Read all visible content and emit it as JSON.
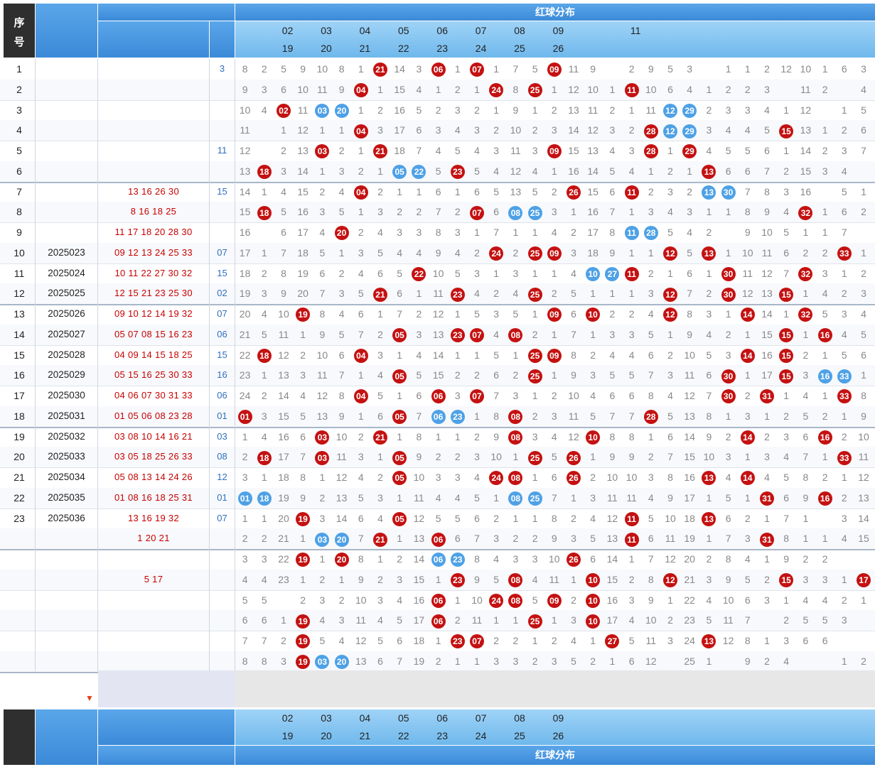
{
  "header": {
    "seq_label_1": "序",
    "seq_label_2": "号",
    "dist_title": "红球分布",
    "col_top": [
      "02",
      "03",
      "04",
      "05",
      "06",
      "07",
      "08",
      "09",
      "",
      "11"
    ],
    "col_bottom": [
      "19",
      "20",
      "21",
      "22",
      "23",
      "24",
      "25",
      "26"
    ]
  },
  "footer": {
    "dist_title": "红球分布",
    "col_top": [
      "02",
      "03",
      "04",
      "05",
      "06",
      "07",
      "08",
      "09"
    ],
    "col_bottom": [
      "19",
      "20",
      "21",
      "22",
      "23",
      "24",
      "25",
      "26"
    ]
  },
  "rows": [
    {
      "seq": "1",
      "issue": "",
      "nums": "",
      "blue": "3",
      "cells": [
        "8",
        "2",
        "5",
        "9",
        "10",
        "8",
        "1",
        "R21",
        "14",
        "3",
        "R06",
        "1",
        "R07",
        "1",
        "7",
        "5",
        "R09",
        "11",
        "9",
        "",
        "2",
        "9",
        "5",
        "3",
        "",
        "1",
        "1",
        "2",
        "12",
        "10",
        "1",
        "6",
        "3"
      ]
    },
    {
      "seq": "2",
      "issue": "",
      "nums": "",
      "blue": "",
      "cells": [
        "9",
        "3",
        "6",
        "10",
        "11",
        "9",
        "R04",
        "1",
        "15",
        "4",
        "1",
        "2",
        "1",
        "R24",
        "8",
        "R25",
        "1",
        "12",
        "10",
        "1",
        "R11",
        "10",
        "6",
        "4",
        "1",
        "2",
        "2",
        "3",
        "",
        "11",
        "2",
        "",
        "4"
      ]
    },
    {
      "seq": "3",
      "issue": "",
      "nums": "",
      "blue": "",
      "cells": [
        "10",
        "4",
        "R02",
        "11",
        "B03",
        "B20",
        "1",
        "2",
        "16",
        "5",
        "2",
        "3",
        "2",
        "1",
        "9",
        "1",
        "2",
        "13",
        "11",
        "2",
        "1",
        "11",
        "B12",
        "B29",
        "2",
        "3",
        "3",
        "4",
        "1",
        "12",
        "",
        "1",
        "5"
      ]
    },
    {
      "seq": "4",
      "issue": "",
      "nums": "",
      "blue": "",
      "cells": [
        "11",
        "",
        "1",
        "12",
        "1",
        "1",
        "R04",
        "3",
        "17",
        "6",
        "3",
        "4",
        "3",
        "2",
        "10",
        "2",
        "3",
        "14",
        "12",
        "3",
        "2",
        "R28",
        "B12",
        "B29",
        "3",
        "4",
        "4",
        "5",
        "R15",
        "13",
        "1",
        "2",
        "6"
      ]
    },
    {
      "seq": "5",
      "issue": "",
      "nums": "",
      "blue": "11",
      "cells": [
        "12",
        "",
        "2",
        "13",
        "R03",
        "2",
        "1",
        "R21",
        "18",
        "7",
        "4",
        "5",
        "4",
        "3",
        "11",
        "3",
        "R09",
        "15",
        "13",
        "4",
        "3",
        "R28",
        "1",
        "R29",
        "4",
        "5",
        "5",
        "6",
        "1",
        "14",
        "2",
        "3",
        "7"
      ]
    },
    {
      "seq": "6",
      "issue": "",
      "nums": "",
      "blue": "",
      "cells": [
        "13",
        "R18",
        "3",
        "14",
        "1",
        "3",
        "2",
        "1",
        "B05",
        "B22",
        "5",
        "R23",
        "5",
        "4",
        "12",
        "4",
        "1",
        "16",
        "14",
        "5",
        "4",
        "1",
        "2",
        "1",
        "R13",
        "6",
        "6",
        "7",
        "2",
        "15",
        "3",
        "4",
        ""
      ]
    },
    {
      "seq": "7",
      "issue": "",
      "nums": "13  16  26  30",
      "blue": "15",
      "cells": [
        "14",
        "1",
        "4",
        "15",
        "2",
        "4",
        "R04",
        "2",
        "1",
        "1",
        "6",
        "1",
        "6",
        "5",
        "13",
        "5",
        "2",
        "R26",
        "15",
        "6",
        "R11",
        "2",
        "3",
        "2",
        "B13",
        "B30",
        "7",
        "8",
        "3",
        "16",
        "",
        "5",
        "1"
      ]
    },
    {
      "seq": "8",
      "issue": "",
      "nums": "8  16  18  25",
      "blue": "",
      "cells": [
        "15",
        "R18",
        "5",
        "16",
        "3",
        "5",
        "1",
        "3",
        "2",
        "2",
        "7",
        "2",
        "R07",
        "6",
        "B08",
        "B25",
        "3",
        "1",
        "16",
        "7",
        "1",
        "3",
        "4",
        "3",
        "1",
        "1",
        "8",
        "9",
        "4",
        "R32",
        "1",
        "6",
        "2"
      ]
    },
    {
      "seq": "9",
      "issue": "",
      "nums": "11  17  18  20  28  30",
      "blue": "",
      "cells": [
        "16",
        "",
        "6",
        "17",
        "4",
        "R20",
        "2",
        "4",
        "3",
        "3",
        "8",
        "3",
        "1",
        "7",
        "1",
        "1",
        "4",
        "2",
        "17",
        "8",
        "B11",
        "B28",
        "5",
        "4",
        "2",
        "",
        "9",
        "10",
        "5",
        "1",
        "1",
        "7",
        ""
      ]
    },
    {
      "seq": "10",
      "issue": "2025023",
      "nums": "09  12  13  24  25  33",
      "blue": "07",
      "cells": [
        "17",
        "1",
        "7",
        "18",
        "5",
        "1",
        "3",
        "5",
        "4",
        "4",
        "9",
        "4",
        "2",
        "R24",
        "2",
        "R25",
        "R09",
        "3",
        "18",
        "9",
        "1",
        "1",
        "R12",
        "5",
        "R13",
        "1",
        "10",
        "11",
        "6",
        "2",
        "2",
        "R33",
        "1"
      ]
    },
    {
      "seq": "11",
      "issue": "2025024",
      "nums": "10  11  22  27  30  32",
      "blue": "15",
      "cells": [
        "18",
        "2",
        "8",
        "19",
        "6",
        "2",
        "4",
        "6",
        "5",
        "R22",
        "10",
        "5",
        "3",
        "1",
        "3",
        "1",
        "1",
        "4",
        "B10",
        "B27",
        "R11",
        "2",
        "1",
        "6",
        "1",
        "R30",
        "11",
        "12",
        "7",
        "R32",
        "3",
        "1",
        "2"
      ]
    },
    {
      "seq": "12",
      "issue": "2025025",
      "nums": "12  15  21  23  25  30",
      "blue": "02",
      "cells": [
        "19",
        "3",
        "9",
        "20",
        "7",
        "3",
        "5",
        "R21",
        "6",
        "1",
        "11",
        "R23",
        "4",
        "2",
        "4",
        "R25",
        "2",
        "5",
        "1",
        "1",
        "1",
        "3",
        "R12",
        "7",
        "2",
        "R30",
        "12",
        "13",
        "R15",
        "1",
        "4",
        "2",
        "3"
      ]
    },
    {
      "seq": "13",
      "issue": "2025026",
      "nums": "09  10  12  14  19  32",
      "blue": "07",
      "cells": [
        "20",
        "4",
        "10",
        "R19",
        "8",
        "4",
        "6",
        "1",
        "7",
        "2",
        "12",
        "1",
        "5",
        "3",
        "5",
        "1",
        "R09",
        "6",
        "R10",
        "2",
        "2",
        "4",
        "R12",
        "8",
        "3",
        "1",
        "R14",
        "14",
        "1",
        "R32",
        "5",
        "3",
        "4"
      ]
    },
    {
      "seq": "14",
      "issue": "2025027",
      "nums": "05  07  08  15  16  23",
      "blue": "06",
      "cells": [
        "21",
        "5",
        "11",
        "1",
        "9",
        "5",
        "7",
        "2",
        "R05",
        "3",
        "13",
        "R23",
        "R07",
        "4",
        "R08",
        "2",
        "1",
        "7",
        "1",
        "3",
        "3",
        "5",
        "1",
        "9",
        "4",
        "2",
        "1",
        "15",
        "R15",
        "1",
        "R16",
        "4",
        "5"
      ]
    },
    {
      "seq": "15",
      "issue": "2025028",
      "nums": "04  09  14  15  18  25",
      "blue": "15",
      "cells": [
        "22",
        "R18",
        "12",
        "2",
        "10",
        "6",
        "R04",
        "3",
        "1",
        "4",
        "14",
        "1",
        "1",
        "5",
        "1",
        "R25",
        "R09",
        "8",
        "2",
        "4",
        "4",
        "6",
        "2",
        "10",
        "5",
        "3",
        "R14",
        "16",
        "R15",
        "2",
        "1",
        "5",
        "6"
      ]
    },
    {
      "seq": "16",
      "issue": "2025029",
      "nums": "05  15  16  25  30  33",
      "blue": "16",
      "cells": [
        "23",
        "1",
        "13",
        "3",
        "11",
        "7",
        "1",
        "4",
        "R05",
        "5",
        "15",
        "2",
        "2",
        "6",
        "2",
        "R25",
        "1",
        "9",
        "3",
        "5",
        "5",
        "7",
        "3",
        "11",
        "6",
        "R30",
        "1",
        "17",
        "R15",
        "3",
        "B16",
        "B33",
        "1"
      ]
    },
    {
      "seq": "17",
      "issue": "2025030",
      "nums": "04  06  07  30  31  33",
      "blue": "06",
      "cells": [
        "24",
        "2",
        "14",
        "4",
        "12",
        "8",
        "R04",
        "5",
        "1",
        "6",
        "R06",
        "3",
        "R07",
        "7",
        "3",
        "1",
        "2",
        "10",
        "4",
        "6",
        "6",
        "8",
        "4",
        "12",
        "7",
        "R30",
        "2",
        "R31",
        "1",
        "4",
        "1",
        "R33",
        "8"
      ]
    },
    {
      "seq": "18",
      "issue": "2025031",
      "nums": "01  05  06  08  23  28",
      "blue": "01",
      "cells": [
        "R01",
        "3",
        "15",
        "5",
        "13",
        "9",
        "1",
        "6",
        "R05",
        "7",
        "B06",
        "B23",
        "1",
        "8",
        "R08",
        "2",
        "3",
        "11",
        "5",
        "7",
        "7",
        "R28",
        "5",
        "13",
        "8",
        "1",
        "3",
        "1",
        "2",
        "5",
        "2",
        "1",
        "9"
      ]
    },
    {
      "seq": "19",
      "issue": "2025032",
      "nums": "03  08  10  14  16  21",
      "blue": "03",
      "cells": [
        "1",
        "4",
        "16",
        "6",
        "R03",
        "10",
        "2",
        "R21",
        "1",
        "8",
        "1",
        "1",
        "2",
        "9",
        "R08",
        "3",
        "4",
        "12",
        "R10",
        "8",
        "8",
        "1",
        "6",
        "14",
        "9",
        "2",
        "R14",
        "2",
        "3",
        "6",
        "R16",
        "2",
        "10"
      ]
    },
    {
      "seq": "20",
      "issue": "2025033",
      "nums": "03  05  18  25  26  33",
      "blue": "08",
      "cells": [
        "2",
        "R18",
        "17",
        "7",
        "R03",
        "11",
        "3",
        "1",
        "R05",
        "9",
        "2",
        "2",
        "3",
        "10",
        "1",
        "R25",
        "5",
        "R26",
        "1",
        "9",
        "9",
        "2",
        "7",
        "15",
        "10",
        "3",
        "1",
        "3",
        "4",
        "7",
        "1",
        "R33",
        "11"
      ]
    },
    {
      "seq": "21",
      "issue": "2025034",
      "nums": "05  08  13  14  24  26",
      "blue": "12",
      "cells": [
        "3",
        "1",
        "18",
        "8",
        "1",
        "12",
        "4",
        "2",
        "R05",
        "10",
        "3",
        "3",
        "4",
        "R24",
        "R08",
        "1",
        "6",
        "R26",
        "2",
        "10",
        "10",
        "3",
        "8",
        "16",
        "R13",
        "4",
        "R14",
        "4",
        "5",
        "8",
        "2",
        "1",
        "12"
      ]
    },
    {
      "seq": "22",
      "issue": "2025035",
      "nums": "01  08  16  18  25  31",
      "blue": "01",
      "cells": [
        "B01",
        "B18",
        "19",
        "9",
        "2",
        "13",
        "5",
        "3",
        "1",
        "11",
        "4",
        "4",
        "5",
        "1",
        "B08",
        "B25",
        "7",
        "1",
        "3",
        "11",
        "11",
        "4",
        "9",
        "17",
        "1",
        "5",
        "1",
        "R31",
        "6",
        "9",
        "R16",
        "2",
        "13"
      ]
    },
    {
      "seq": "23",
      "issue": "2025036",
      "nums": "13  16  19  32",
      "blue": "07",
      "cells": [
        "1",
        "1",
        "20",
        "R19",
        "3",
        "14",
        "6",
        "4",
        "R05",
        "12",
        "5",
        "5",
        "6",
        "2",
        "1",
        "1",
        "8",
        "2",
        "4",
        "12",
        "R11",
        "5",
        "10",
        "18",
        "R13",
        "6",
        "2",
        "1",
        "7",
        "1",
        "",
        "3",
        "14"
      ]
    },
    {
      "seq": "",
      "issue": "",
      "nums": "1  20  21",
      "blue": "",
      "cells": [
        "2",
        "2",
        "21",
        "1",
        "B03",
        "B20",
        "7",
        "R21",
        "1",
        "13",
        "R06",
        "6",
        "7",
        "3",
        "2",
        "2",
        "9",
        "3",
        "5",
        "13",
        "R11",
        "6",
        "11",
        "19",
        "1",
        "7",
        "3",
        "R31",
        "8",
        "1",
        "1",
        "4",
        "15"
      ]
    },
    {
      "seq": "",
      "issue": "",
      "nums": "",
      "blue": "",
      "cells": [
        "3",
        "3",
        "22",
        "R19",
        "1",
        "R20",
        "8",
        "1",
        "2",
        "14",
        "B06",
        "B23",
        "8",
        "4",
        "3",
        "3",
        "10",
        "R26",
        "6",
        "14",
        "1",
        "7",
        "12",
        "20",
        "2",
        "8",
        "4",
        "1",
        "9",
        "2",
        "2",
        "",
        ""
      ]
    },
    {
      "seq": "",
      "issue": "",
      "nums": "5  17",
      "blue": "",
      "cells": [
        "4",
        "4",
        "23",
        "1",
        "2",
        "1",
        "9",
        "2",
        "3",
        "15",
        "1",
        "R23",
        "9",
        "5",
        "R08",
        "4",
        "11",
        "1",
        "R10",
        "15",
        "2",
        "8",
        "R12",
        "21",
        "3",
        "9",
        "5",
        "2",
        "R15",
        "3",
        "3",
        "1",
        "R17"
      ]
    },
    {
      "seq": "",
      "issue": "",
      "nums": "",
      "blue": "",
      "cells": [
        "5",
        "5",
        "",
        "2",
        "3",
        "2",
        "10",
        "3",
        "4",
        "16",
        "R06",
        "1",
        "10",
        "R24",
        "R08",
        "5",
        "R09",
        "2",
        "R10",
        "16",
        "3",
        "9",
        "1",
        "22",
        "4",
        "10",
        "6",
        "3",
        "1",
        "4",
        "4",
        "2",
        "1"
      ]
    },
    {
      "seq": "",
      "issue": "",
      "nums": "",
      "blue": "",
      "cells": [
        "6",
        "6",
        "1",
        "R19",
        "4",
        "3",
        "11",
        "4",
        "5",
        "17",
        "R06",
        "2",
        "11",
        "1",
        "1",
        "R25",
        "1",
        "3",
        "R10",
        "17",
        "4",
        "10",
        "2",
        "23",
        "5",
        "11",
        "7",
        "",
        "2",
        "5",
        "5",
        "3",
        ""
      ]
    },
    {
      "seq": "",
      "issue": "",
      "nums": "",
      "blue": "",
      "cells": [
        "7",
        "7",
        "2",
        "R19",
        "5",
        "4",
        "12",
        "5",
        "6",
        "18",
        "1",
        "R23",
        "R07",
        "2",
        "2",
        "1",
        "2",
        "4",
        "1",
        "R27",
        "5",
        "11",
        "3",
        "24",
        "R13",
        "12",
        "8",
        "1",
        "3",
        "6",
        "6",
        "",
        ""
      ]
    },
    {
      "seq": "",
      "issue": "",
      "nums": "",
      "blue": "",
      "cells": [
        "8",
        "8",
        "3",
        "R19",
        "B03",
        "B20",
        "13",
        "6",
        "7",
        "19",
        "2",
        "1",
        "1",
        "3",
        "3",
        "2",
        "3",
        "5",
        "2",
        "1",
        "6",
        "12",
        "",
        "25",
        "1",
        "",
        "9",
        "2",
        "4",
        "",
        "",
        "1",
        "2"
      ]
    }
  ]
}
